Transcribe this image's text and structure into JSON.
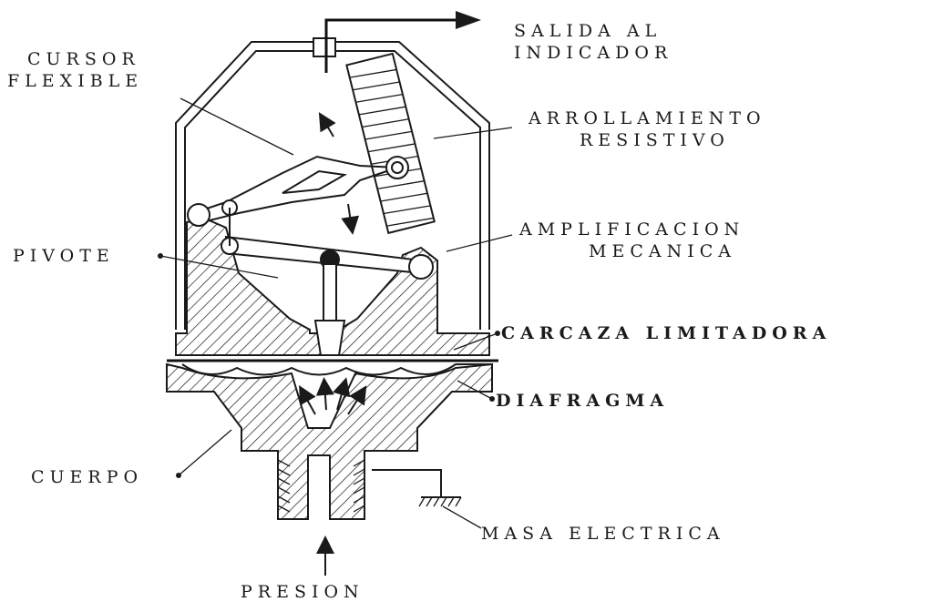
{
  "labels": {
    "salida_l1": "SALIDA AL",
    "salida_l2": "INDICADOR",
    "cursor_l1": "CURSOR",
    "cursor_l2": "FLEXIBLE",
    "arroll_l1": "ARROLLAMIENTO",
    "arroll_l2": "RESISTIVO",
    "pivote": "PIVOTE",
    "ampli_l1": "AMPLIFICACION",
    "ampli_l2": "MECANICA",
    "carcaza": "CARCAZA LIMITADORA",
    "diafragma": "DIAFRAGMA",
    "cuerpo": "CUERPO",
    "masa": "MASA ELECTRICA",
    "presion": "PRESION"
  },
  "colors": {
    "ink": "#1a1a1a",
    "background": "#ffffff"
  }
}
